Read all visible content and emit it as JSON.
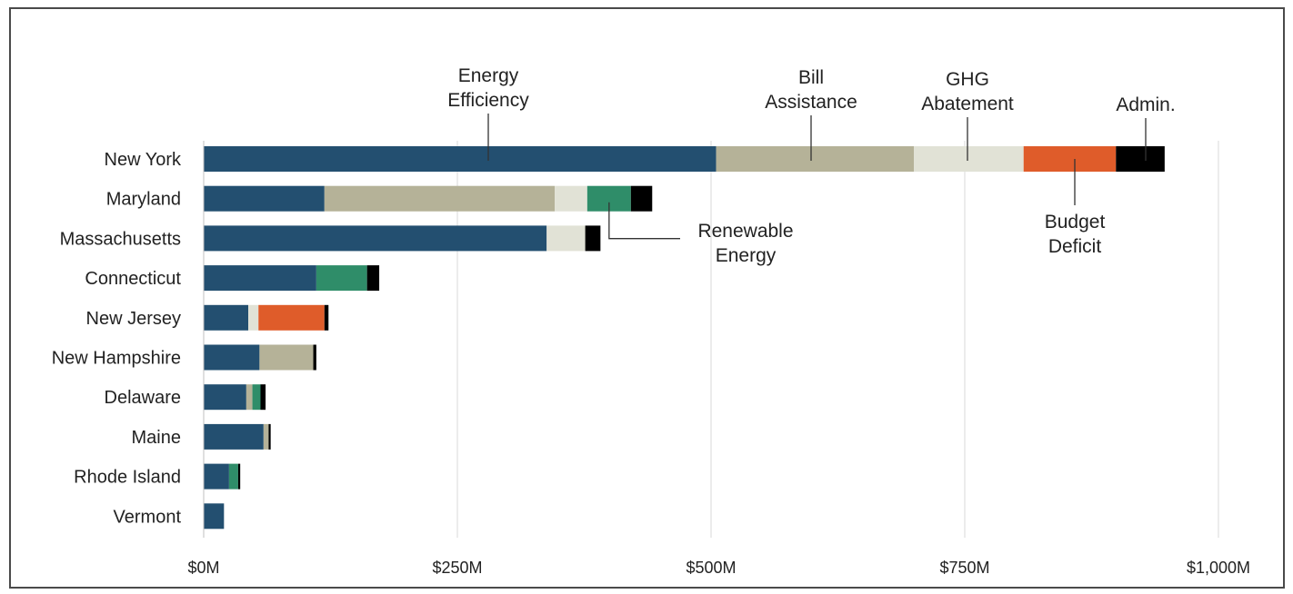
{
  "chart_data": {
    "type": "bar",
    "orientation": "horizontal",
    "stacked": true,
    "title": "",
    "xlabel": "",
    "ylabel": "",
    "xlim": [
      0,
      1000
    ],
    "x_ticks": [
      "$0M",
      "$250M",
      "$500M",
      "$750M",
      "$1,000M"
    ],
    "x_tick_values": [
      0,
      250,
      500,
      750,
      1000
    ],
    "grid": "vertical",
    "legend": "none (direct annotations)",
    "categories": [
      "New York",
      "Maryland",
      "Massachusetts",
      "Connecticut",
      "New Jersey",
      "New Hampshire",
      "Delaware",
      "Maine",
      "Rhode Island",
      "Vermont"
    ],
    "series": [
      {
        "name": "Energy Efficiency",
        "color": "#234f70",
        "values": [
          505,
          119,
          338,
          111,
          44,
          55,
          42,
          59,
          25,
          20
        ]
      },
      {
        "name": "Bill Assistance",
        "color": "#b5b298",
        "values": [
          195,
          227,
          0,
          0,
          0,
          53,
          6,
          5,
          0,
          0
        ]
      },
      {
        "name": "GHG Abatement",
        "color": "#e1e2d6",
        "values": [
          108,
          32,
          38,
          0,
          10,
          0,
          0,
          0,
          0,
          0
        ]
      },
      {
        "name": "Renewable Energy",
        "color": "#2f8d69",
        "values": [
          0,
          43,
          0,
          50,
          0,
          0,
          8,
          0,
          9,
          0
        ]
      },
      {
        "name": "Budget Deficit",
        "color": "#df5c2a",
        "values": [
          91,
          0,
          0,
          0,
          65,
          0,
          0,
          0,
          0,
          0
        ]
      },
      {
        "name": "Admin.",
        "color": "#000000",
        "values": [
          48,
          21,
          15,
          12,
          4,
          3,
          5,
          2,
          2,
          0
        ]
      }
    ],
    "annotations": [
      {
        "series": "Energy Efficiency",
        "lines": [
          "Energy",
          "Efficiency"
        ]
      },
      {
        "series": "Bill Assistance",
        "lines": [
          "Bill",
          "Assistance"
        ]
      },
      {
        "series": "GHG Abatement",
        "lines": [
          "GHG",
          "Abatement"
        ]
      },
      {
        "series": "Admin.",
        "lines": [
          "Admin."
        ]
      },
      {
        "series": "Renewable Energy",
        "lines": [
          "Renewable",
          "Energy"
        ]
      },
      {
        "series": "Budget Deficit",
        "lines": [
          "Budget",
          "Deficit"
        ]
      }
    ]
  }
}
